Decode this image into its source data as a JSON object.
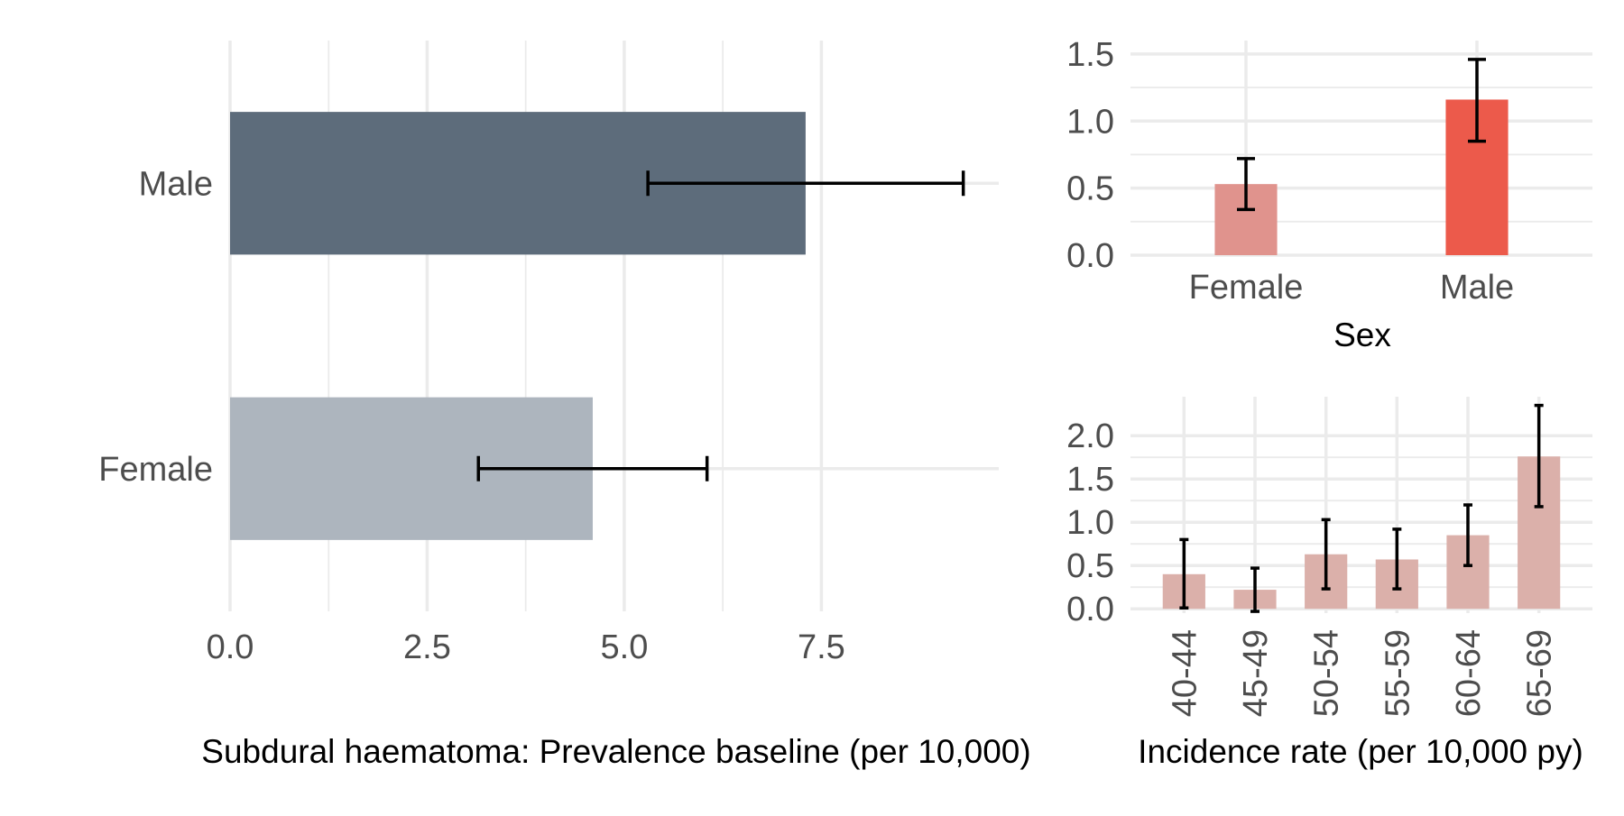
{
  "colors": {
    "background": "#ffffff",
    "grid": "#ebebeb",
    "tick_text": "#4d4d4d",
    "error_bar": "#000000"
  },
  "chart_data": [
    {
      "id": "prevalence",
      "type": "bar",
      "orientation": "horizontal",
      "categories": [
        "Male",
        "Female"
      ],
      "values": [
        7.3,
        4.6
      ],
      "ci_low": [
        5.3,
        3.15
      ],
      "ci_high": [
        9.3,
        6.05
      ],
      "bar_colors": [
        "#5d6c7b",
        "#adb5be"
      ],
      "xlabel": "Subdural haematoma: Prevalence baseline (per 10,000)",
      "ylabel": "",
      "xlim": [
        0,
        9.75
      ],
      "x_ticks": [
        0,
        2.5,
        5,
        7.5
      ],
      "x_tick_labels": [
        "0.0",
        "2.5",
        "5.0",
        "7.5"
      ],
      "grid": true
    },
    {
      "id": "incidence_sex",
      "type": "bar",
      "orientation": "vertical",
      "categories": [
        "Female",
        "Male"
      ],
      "values": [
        0.53,
        1.16
      ],
      "ci_low": [
        0.34,
        0.85
      ],
      "ci_high": [
        0.72,
        1.46
      ],
      "bar_colors": [
        "#e0938d",
        "#ec5a4b"
      ],
      "xlabel": "Sex",
      "ylabel": "",
      "ylim": [
        0,
        1.6
      ],
      "y_ticks": [
        0,
        0.5,
        1,
        1.5
      ],
      "y_tick_labels": [
        "0.0",
        "0.5",
        "1.0",
        "1.5"
      ],
      "grid": true
    },
    {
      "id": "incidence_age",
      "type": "bar",
      "orientation": "vertical",
      "categories": [
        "40-44",
        "45-49",
        "50-54",
        "55-59",
        "60-64",
        "65-69"
      ],
      "values": [
        0.4,
        0.22,
        0.63,
        0.57,
        0.85,
        1.76
      ],
      "ci_low": [
        0.01,
        -0.03,
        0.23,
        0.23,
        0.5,
        1.18
      ],
      "ci_high": [
        0.8,
        0.47,
        1.03,
        0.92,
        1.2,
        2.35
      ],
      "bar_colors": [
        "#dbb0aa"
      ],
      "xlabel": "Incidence rate (per 10,000 py)",
      "ylabel": "",
      "ylim": [
        -0.05,
        2.45
      ],
      "y_ticks": [
        0,
        0.5,
        1,
        1.5,
        2
      ],
      "y_tick_labels": [
        "0.0",
        "0.5",
        "1.0",
        "1.5",
        "2.0"
      ],
      "grid": true
    }
  ]
}
